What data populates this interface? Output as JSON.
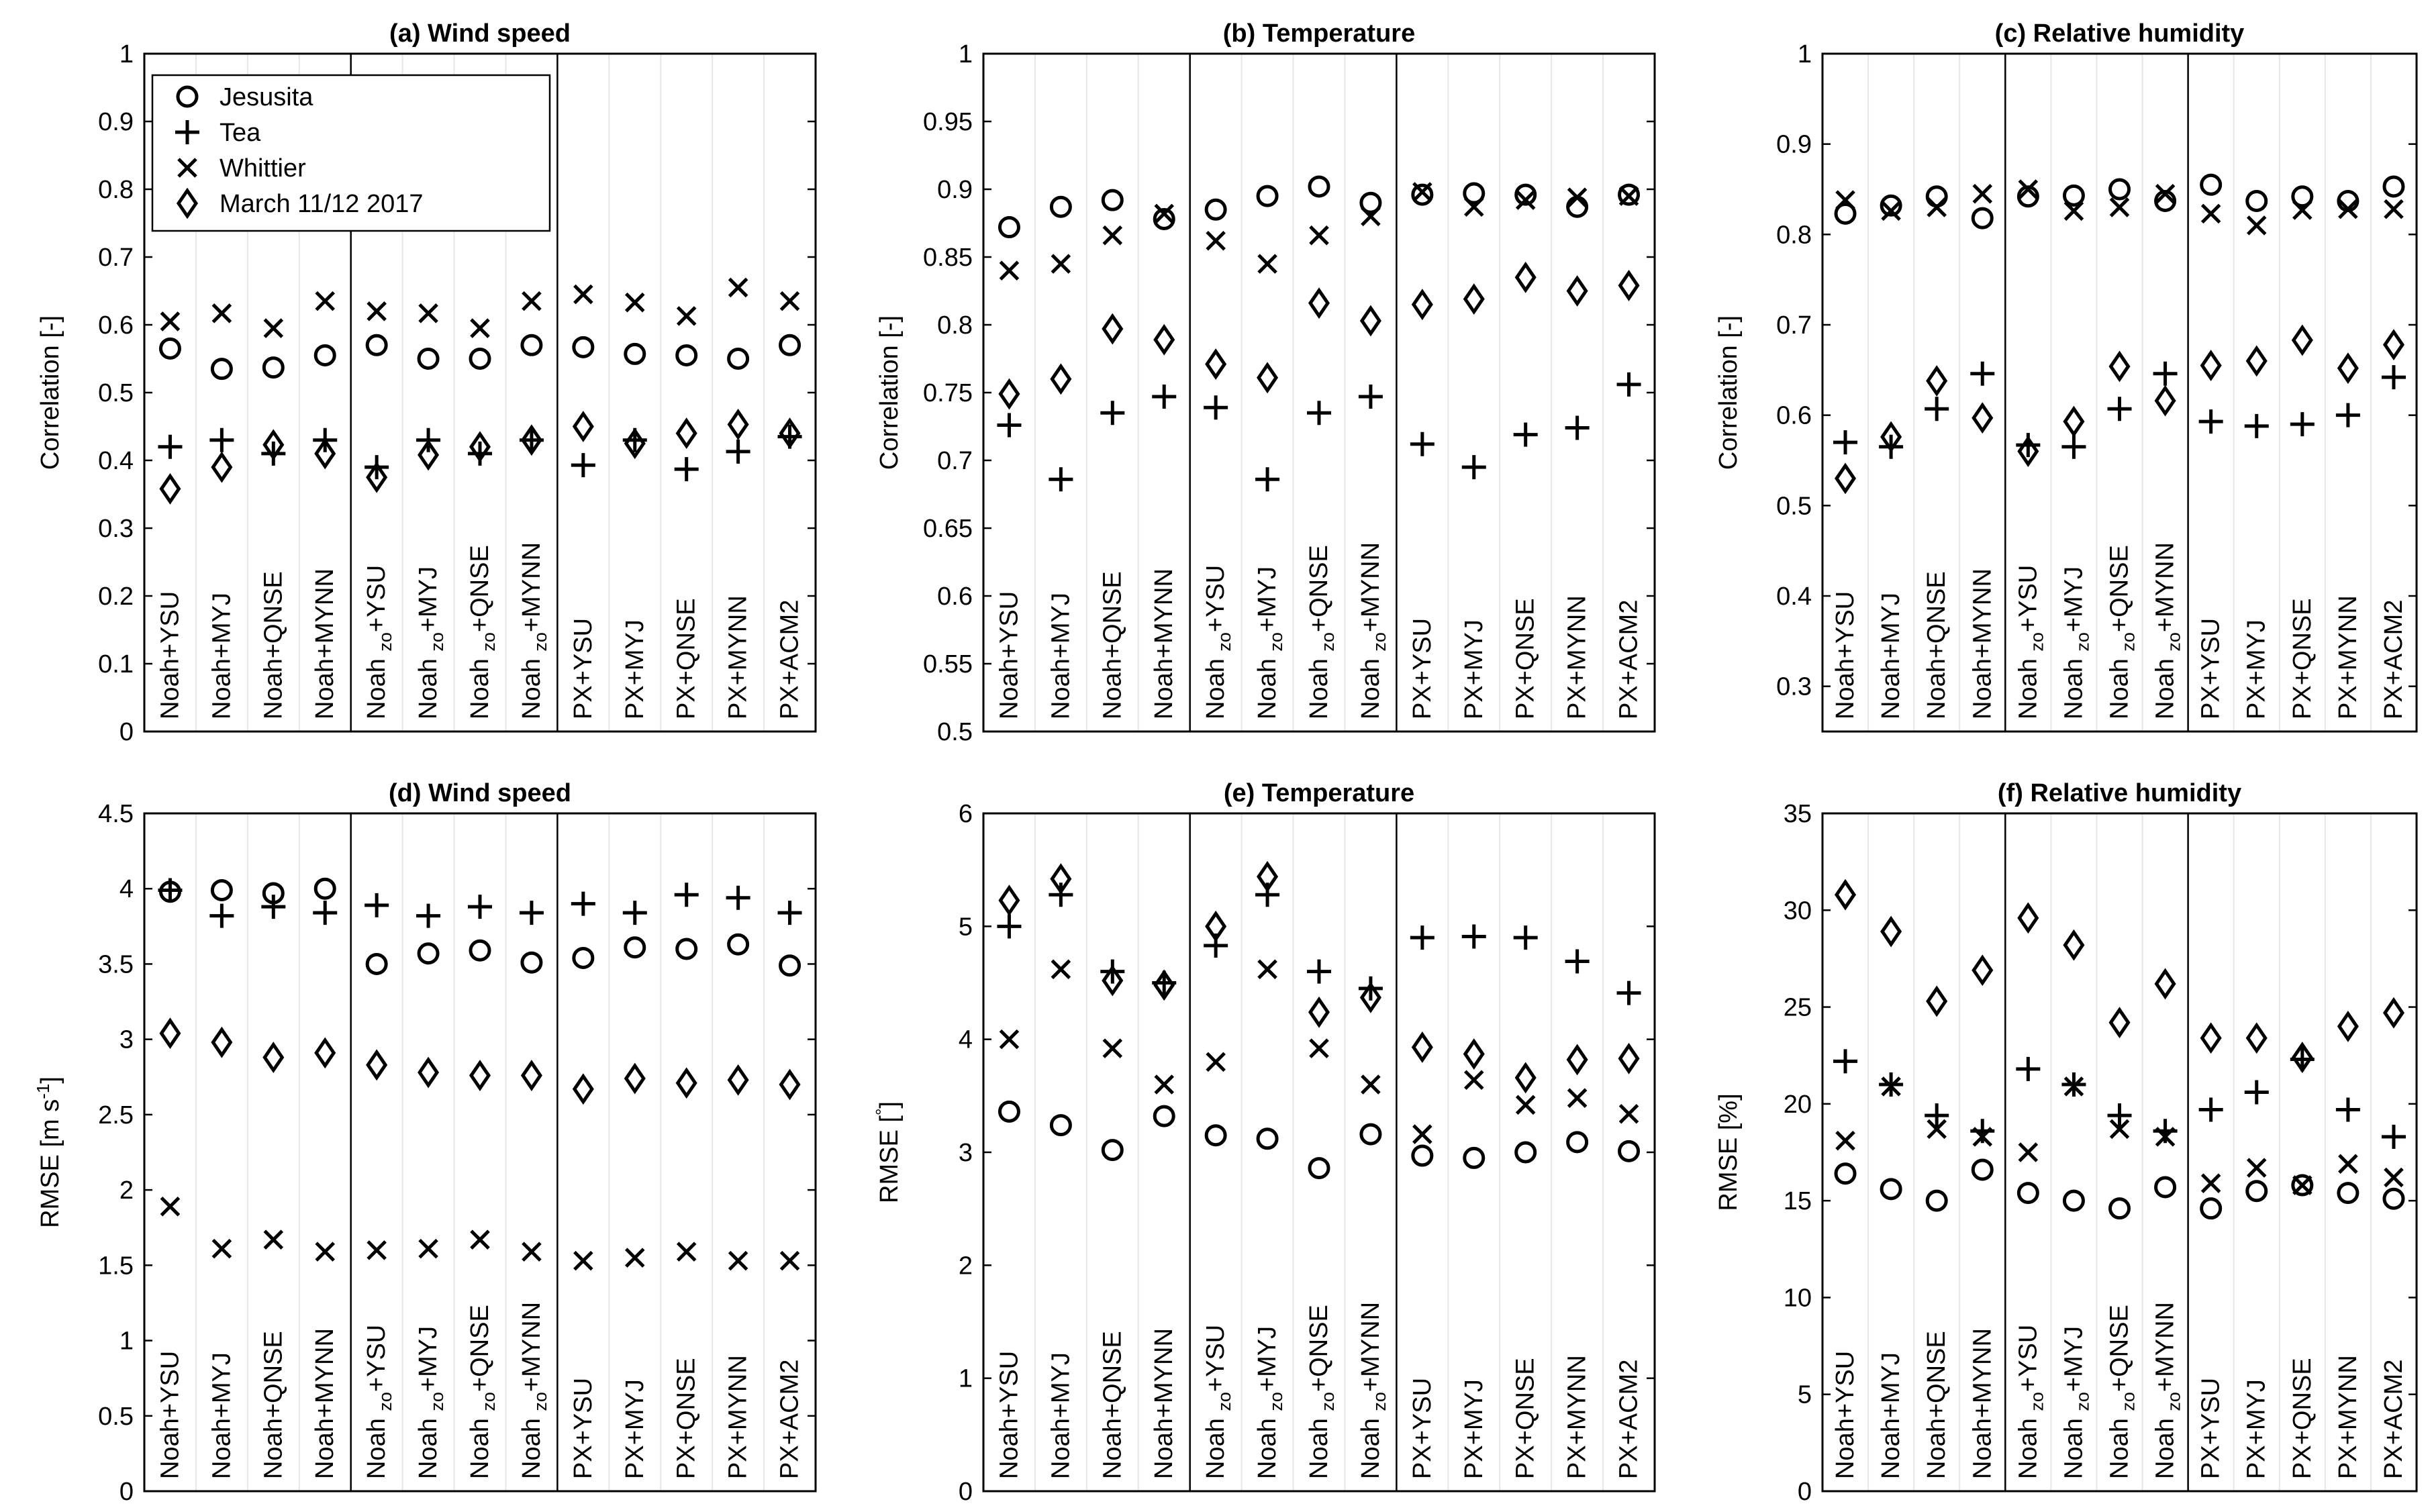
{
  "legend": {
    "position": "top-left",
    "entries": [
      {
        "name": "Jesusita",
        "marker": "circle"
      },
      {
        "name": "Tea",
        "marker": "plus"
      },
      {
        "name": "Whittier",
        "marker": "cross"
      },
      {
        "name": "March 11/12 2017",
        "marker": "diamond"
      }
    ]
  },
  "category_labels": [
    {
      "base": "Noah",
      "sub": "",
      "rest": "+YSU"
    },
    {
      "base": "Noah",
      "sub": "",
      "rest": "+MYJ"
    },
    {
      "base": "Noah",
      "sub": "",
      "rest": "+QNSE"
    },
    {
      "base": "Noah",
      "sub": "",
      "rest": "+MYNN"
    },
    {
      "base": "Noah ",
      "sub": "zo",
      "rest": "+YSU"
    },
    {
      "base": "Noah ",
      "sub": "zo",
      "rest": "+MYJ"
    },
    {
      "base": "Noah ",
      "sub": "zo",
      "rest": "+QNSE"
    },
    {
      "base": "Noah ",
      "sub": "zo",
      "rest": "+MYNN"
    },
    {
      "base": "PX",
      "sub": "",
      "rest": "+YSU"
    },
    {
      "base": "PX",
      "sub": "",
      "rest": "+MYJ"
    },
    {
      "base": "PX",
      "sub": "",
      "rest": "+QNSE"
    },
    {
      "base": "PX",
      "sub": "",
      "rest": "+MYNN"
    },
    {
      "base": "PX",
      "sub": "",
      "rest": "+ACM2"
    }
  ],
  "chart_data": [
    {
      "type": "scatter",
      "title": "(a) Wind speed",
      "ylabel": "Correlation [-]",
      "ylim": [
        0,
        1
      ],
      "yticks": [
        "0",
        "0.1",
        "0.2",
        "0.3",
        "0.4",
        "0.5",
        "0.6",
        "0.7",
        "0.8",
        "0.9",
        "1"
      ],
      "series": [
        {
          "name": "Jesusita",
          "values": [
            0.565,
            0.535,
            0.537,
            0.555,
            0.57,
            0.55,
            0.55,
            0.57,
            0.567,
            0.557,
            0.555,
            0.55,
            0.57
          ]
        },
        {
          "name": "Tea",
          "values": [
            0.42,
            0.43,
            0.41,
            0.43,
            0.39,
            0.43,
            0.41,
            0.43,
            0.393,
            0.43,
            0.387,
            0.413,
            0.435
          ]
        },
        {
          "name": "Whittier",
          "values": [
            0.605,
            0.617,
            0.595,
            0.635,
            0.62,
            0.617,
            0.595,
            0.635,
            0.645,
            0.633,
            0.613,
            0.655,
            0.635
          ]
        },
        {
          "name": "March 11/12 2017",
          "values": [
            0.358,
            0.39,
            0.423,
            0.41,
            0.375,
            0.408,
            0.42,
            0.43,
            0.45,
            0.425,
            0.44,
            0.453,
            0.44
          ]
        }
      ]
    },
    {
      "type": "scatter",
      "title": "(b) Temperature",
      "ylabel": "Correlation [-]",
      "ylim": [
        0.5,
        1
      ],
      "yticks": [
        "0.5",
        "0.55",
        "0.6",
        "0.65",
        "0.7",
        "0.75",
        "0.8",
        "0.85",
        "0.9",
        "0.95",
        "1"
      ],
      "series": [
        {
          "name": "Jesusita",
          "values": [
            0.872,
            0.887,
            0.892,
            0.878,
            0.885,
            0.895,
            0.902,
            0.89,
            0.896,
            0.897,
            0.896,
            0.887,
            0.896
          ]
        },
        {
          "name": "Tea",
          "values": [
            0.726,
            0.686,
            0.735,
            0.747,
            0.739,
            0.686,
            0.735,
            0.747,
            0.712,
            0.695,
            0.719,
            0.724,
            0.756
          ]
        },
        {
          "name": "Whittier",
          "values": [
            0.84,
            0.845,
            0.866,
            0.882,
            0.862,
            0.845,
            0.866,
            0.88,
            0.898,
            0.887,
            0.892,
            0.894,
            0.895
          ]
        },
        {
          "name": "March 11/12 2017",
          "values": [
            0.749,
            0.76,
            0.797,
            0.789,
            0.771,
            0.761,
            0.816,
            0.803,
            0.815,
            0.819,
            0.835,
            0.825,
            0.829
          ]
        }
      ]
    },
    {
      "type": "scatter",
      "title": "(c) Relative humidity",
      "ylabel": "Correlation [-]",
      "ylim": [
        0.25,
        1
      ],
      "yticks": [
        "0.3",
        "0.4",
        "0.5",
        "0.6",
        "0.7",
        "0.8",
        "0.9",
        "1"
      ],
      "series": [
        {
          "name": "Jesusita",
          "values": [
            0.823,
            0.832,
            0.842,
            0.818,
            0.842,
            0.843,
            0.85,
            0.837,
            0.855,
            0.837,
            0.842,
            0.837,
            0.853
          ]
        },
        {
          "name": "Tea",
          "values": [
            0.57,
            0.565,
            0.607,
            0.646,
            0.567,
            0.565,
            0.607,
            0.646,
            0.593,
            0.588,
            0.59,
            0.6,
            0.642
          ]
        },
        {
          "name": "Whittier",
          "values": [
            0.838,
            0.826,
            0.83,
            0.845,
            0.85,
            0.826,
            0.83,
            0.845,
            0.823,
            0.81,
            0.827,
            0.828,
            0.828
          ]
        },
        {
          "name": "March 11/12 2017",
          "values": [
            0.53,
            0.576,
            0.638,
            0.597,
            0.56,
            0.593,
            0.654,
            0.616,
            0.655,
            0.66,
            0.683,
            0.652,
            0.678
          ]
        }
      ]
    },
    {
      "type": "scatter",
      "title": "(d) Wind speed",
      "ylabel": "RMSE [m s",
      "ylabel_sup": "-1",
      "ylabel_end": "]",
      "ylim": [
        0,
        4.5
      ],
      "yticks": [
        "0",
        "0.5",
        "1",
        "1.5",
        "2",
        "2.5",
        "3",
        "3.5",
        "4",
        "4.5"
      ],
      "series": [
        {
          "name": "Jesusita",
          "values": [
            3.98,
            3.99,
            3.97,
            4.0,
            3.5,
            3.57,
            3.59,
            3.51,
            3.54,
            3.61,
            3.6,
            3.63,
            3.49
          ]
        },
        {
          "name": "Tea",
          "values": [
            3.99,
            3.82,
            3.88,
            3.84,
            3.89,
            3.82,
            3.88,
            3.84,
            3.9,
            3.84,
            3.96,
            3.94,
            3.84
          ]
        },
        {
          "name": "Whittier",
          "values": [
            1.89,
            1.61,
            1.67,
            1.59,
            1.6,
            1.61,
            1.67,
            1.59,
            1.53,
            1.55,
            1.59,
            1.53,
            1.53
          ]
        },
        {
          "name": "March 11/12 2017",
          "values": [
            3.04,
            2.98,
            2.88,
            2.91,
            2.83,
            2.78,
            2.76,
            2.76,
            2.67,
            2.74,
            2.71,
            2.73,
            2.7
          ]
        }
      ]
    },
    {
      "type": "scatter",
      "title": "(e) Temperature",
      "ylabel": "RMSE [",
      "ylabel_sup": "°",
      "ylabel_end": "]",
      "ylim": [
        0,
        6
      ],
      "yticks": [
        "0",
        "1",
        "2",
        "3",
        "4",
        "5",
        "6"
      ],
      "series": [
        {
          "name": "Jesusita",
          "values": [
            3.36,
            3.24,
            3.02,
            3.32,
            3.15,
            3.12,
            2.86,
            3.16,
            2.97,
            2.95,
            3.0,
            3.09,
            3.01
          ]
        },
        {
          "name": "Tea",
          "values": [
            5.0,
            5.28,
            4.6,
            4.5,
            4.83,
            5.28,
            4.6,
            4.45,
            4.9,
            4.91,
            4.9,
            4.69,
            4.41
          ]
        },
        {
          "name": "Whittier",
          "values": [
            4.0,
            4.62,
            3.92,
            3.6,
            3.8,
            4.62,
            3.92,
            3.6,
            3.16,
            3.64,
            3.42,
            3.48,
            3.34
          ]
        },
        {
          "name": "March 11/12 2017",
          "values": [
            5.23,
            5.42,
            4.52,
            4.48,
            5.0,
            5.44,
            4.24,
            4.37,
            3.93,
            3.87,
            3.66,
            3.82,
            3.83
          ]
        }
      ]
    },
    {
      "type": "scatter",
      "title": "(f) Relative humidity",
      "ylabel": "RMSE [%]",
      "ylabel_sup": "",
      "ylabel_end": "",
      "ylim": [
        0,
        35
      ],
      "yticks": [
        "0",
        "5",
        "10",
        "15",
        "20",
        "25",
        "30",
        "35"
      ],
      "series": [
        {
          "name": "Jesusita",
          "values": [
            16.4,
            15.6,
            15.0,
            16.6,
            15.4,
            15.0,
            14.6,
            15.7,
            14.6,
            15.5,
            15.8,
            15.4,
            15.1
          ]
        },
        {
          "name": "Tea",
          "values": [
            22.2,
            21.0,
            19.4,
            18.6,
            21.8,
            21.0,
            19.4,
            18.6,
            19.7,
            20.6,
            22.3,
            19.7,
            18.3
          ]
        },
        {
          "name": "Whittier",
          "values": [
            18.1,
            20.9,
            18.7,
            18.3,
            17.5,
            20.9,
            18.7,
            18.3,
            15.9,
            16.7,
            15.8,
            16.9,
            16.2
          ]
        },
        {
          "name": "March 11/12 2017",
          "values": [
            30.8,
            28.9,
            25.3,
            26.9,
            29.6,
            28.2,
            24.2,
            26.2,
            23.4,
            23.4,
            22.4,
            24.0,
            24.7
          ]
        }
      ]
    }
  ]
}
